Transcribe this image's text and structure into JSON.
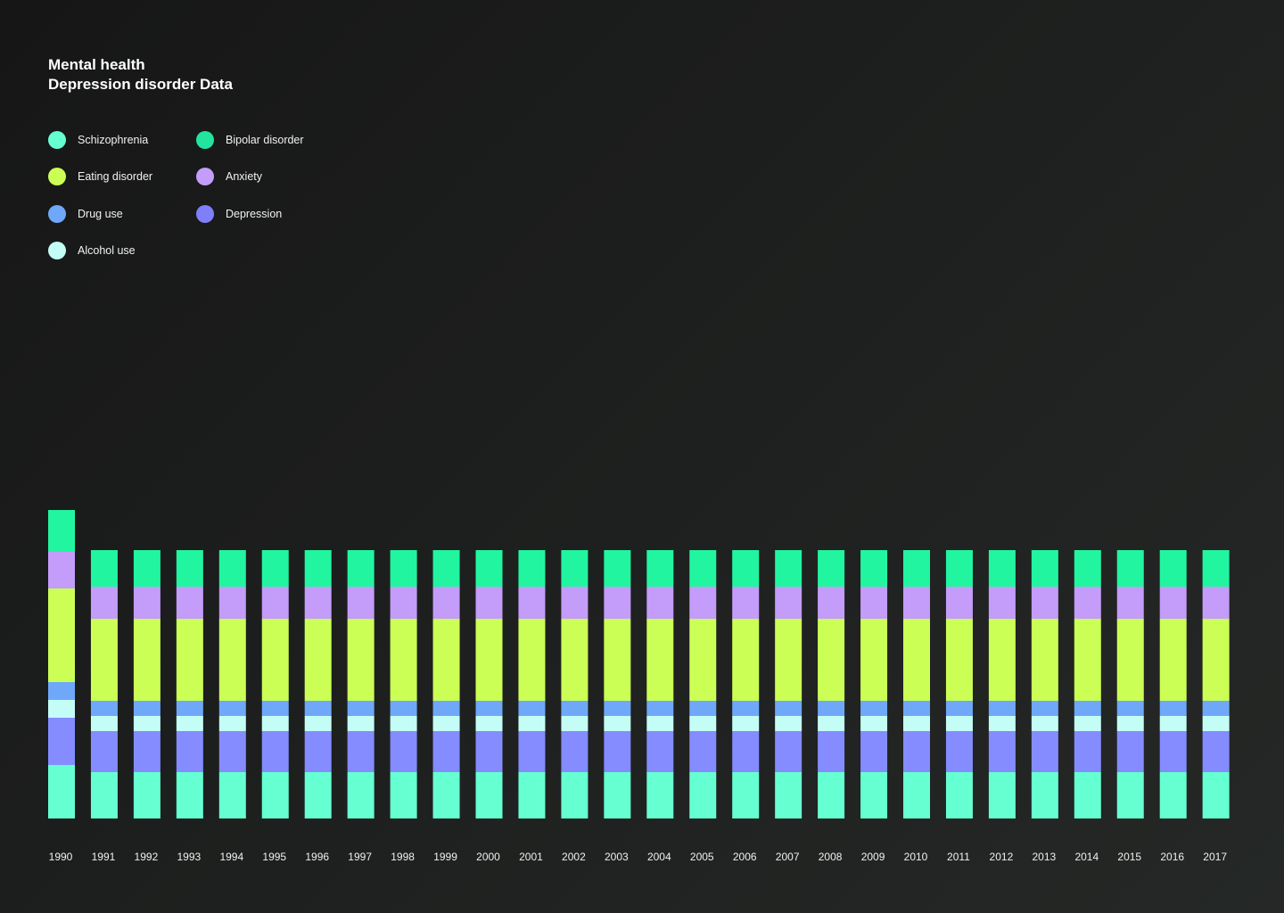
{
  "title": "Mental health",
  "subtitle": "Depression disorder Data",
  "chart_data": {
    "type": "bar",
    "stacked": true,
    "categories": [
      "1990",
      "1991",
      "1992",
      "1993",
      "1994",
      "1995",
      "1996",
      "1997",
      "1998",
      "1999",
      "2000",
      "2001",
      "2002",
      "2003",
      "2004",
      "2005",
      "2006",
      "2007",
      "2008",
      "2009",
      "2010",
      "2011",
      "2012",
      "2013",
      "2014",
      "2015",
      "2016",
      "2017"
    ],
    "legend": [
      {
        "key": "schizophrenia",
        "name": "Schizophrenia",
        "color": "#66ffd1"
      },
      {
        "key": "bipolar",
        "name": "Bipolar disorder",
        "color": "#22e49e"
      },
      {
        "key": "eating",
        "name": "Eating disorder",
        "color": "#ccff55"
      },
      {
        "key": "anxiety",
        "name": "Anxiety",
        "color": "#c49cf9"
      },
      {
        "key": "drug",
        "name": "Drug use",
        "color": "#6fa8f9"
      },
      {
        "key": "depression",
        "name": "Depression",
        "color": "#7f7ff9"
      },
      {
        "key": "alcohol",
        "name": "Alcohol use",
        "color": "#c3fdf6"
      }
    ],
    "stack_order": [
      "schizophrenia",
      "depression",
      "alcohol",
      "drug",
      "eating",
      "anxiety",
      "bipolar"
    ],
    "series": [
      {
        "key": "schizophrenia",
        "name": "Schizophrenia",
        "color": "#66ffd1",
        "values": [
          60,
          52,
          52,
          52,
          52,
          52,
          52,
          52,
          52,
          52,
          52,
          52,
          52,
          52,
          52,
          52,
          52,
          52,
          52,
          52,
          52,
          52,
          52,
          52,
          52,
          52,
          52,
          52
        ]
      },
      {
        "key": "depression",
        "name": "Depression",
        "color": "#848cff",
        "values": [
          53,
          46,
          46,
          46,
          46,
          46,
          46,
          46,
          46,
          46,
          46,
          46,
          46,
          46,
          46,
          46,
          46,
          46,
          46,
          46,
          46,
          46,
          46,
          46,
          46,
          46,
          46,
          46
        ]
      },
      {
        "key": "alcohol",
        "name": "Alcohol use",
        "color": "#c3fdf6",
        "values": [
          20,
          17,
          17,
          17,
          17,
          17,
          17,
          17,
          17,
          17,
          17,
          17,
          17,
          17,
          17,
          17,
          17,
          17,
          17,
          17,
          17,
          17,
          17,
          17,
          17,
          17,
          17,
          17
        ]
      },
      {
        "key": "drug",
        "name": "Drug use",
        "color": "#6fa8f9",
        "values": [
          20,
          17,
          17,
          17,
          17,
          17,
          17,
          17,
          17,
          17,
          17,
          17,
          17,
          17,
          17,
          17,
          17,
          17,
          17,
          17,
          17,
          17,
          17,
          17,
          17,
          17,
          17,
          17
        ]
      },
      {
        "key": "eating",
        "name": "Eating disorder",
        "color": "#ccff55",
        "values": [
          105,
          92,
          92,
          92,
          92,
          92,
          92,
          92,
          92,
          92,
          92,
          92,
          92,
          92,
          92,
          92,
          92,
          92,
          92,
          92,
          92,
          92,
          92,
          92,
          92,
          92,
          92,
          92
        ]
      },
      {
        "key": "anxiety",
        "name": "Anxiety",
        "color": "#c49cf9",
        "values": [
          41,
          36,
          36,
          36,
          36,
          36,
          36,
          36,
          36,
          36,
          36,
          36,
          36,
          36,
          36,
          36,
          36,
          36,
          36,
          36,
          36,
          36,
          36,
          36,
          36,
          36,
          36,
          36
        ]
      },
      {
        "key": "bipolar",
        "name": "Bipolar disorder",
        "color": "#22f5a0",
        "values": [
          47,
          41,
          41,
          41,
          41,
          41,
          41,
          41,
          41,
          41,
          41,
          41,
          41,
          41,
          41,
          41,
          41,
          41,
          41,
          41,
          41,
          41,
          41,
          41,
          41,
          41,
          41,
          41
        ]
      }
    ],
    "grid": false,
    "legend_position": "top-left"
  }
}
